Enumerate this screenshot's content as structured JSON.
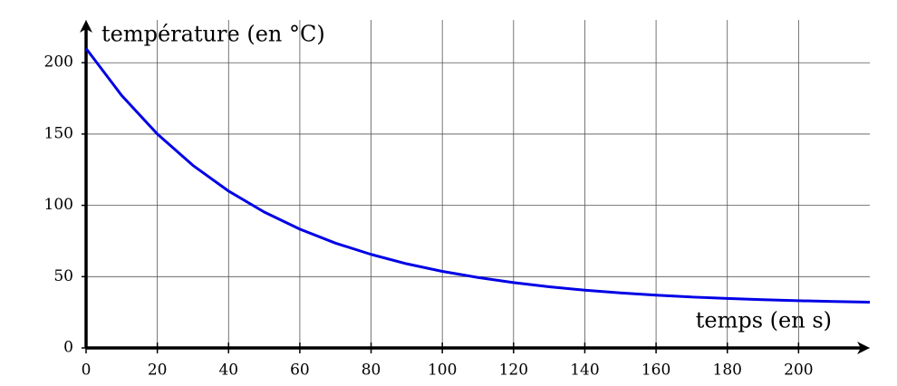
{
  "chart_data": {
    "type": "line",
    "x_label": "temps (en s)",
    "y_label": "température (en °C)",
    "x": [
      0,
      10,
      20,
      30,
      40,
      50,
      60,
      70,
      80,
      90,
      100,
      110,
      120,
      130,
      140,
      150,
      160,
      170,
      180,
      190,
      200,
      210,
      220
    ],
    "series": [
      {
        "color": "#0000e6",
        "values": [
          210,
          177.0,
          150,
          128.0,
          110,
          95.3,
          83.3,
          73.5,
          65.6,
          59.0,
          53.7,
          49.4,
          45.8,
          42.9,
          40.5,
          38.6,
          37.0,
          35.7,
          34.7,
          33.8,
          33.1,
          32.6,
          32.1
        ]
      }
    ],
    "xlim": [
      0,
      220
    ],
    "ylim": [
      0,
      230
    ],
    "xticks": [
      0,
      20,
      40,
      60,
      80,
      100,
      120,
      140,
      160,
      180,
      200
    ],
    "yticks": [
      0,
      50,
      100,
      150,
      200
    ],
    "grid": true
  }
}
